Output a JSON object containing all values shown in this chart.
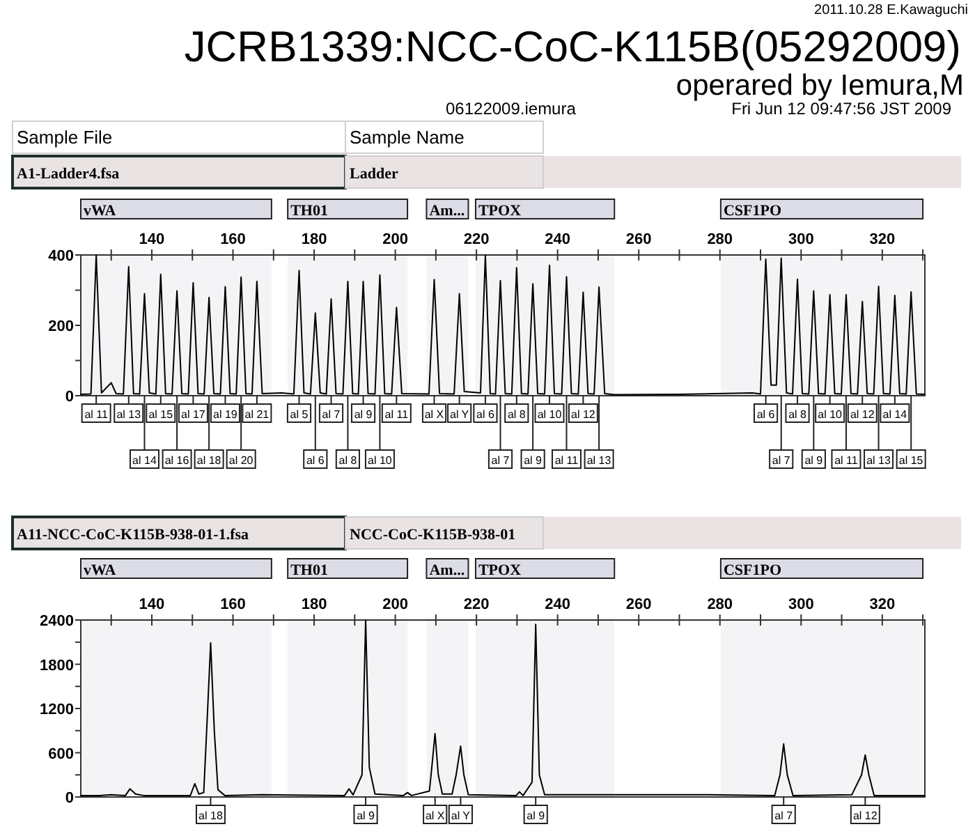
{
  "chart_data": [
    {
      "type": "line",
      "title": "JCRB1339:NCC-CoC-K115B(05292009)",
      "subtitle": "operared by Iemura,M",
      "annotations": [
        "2011.10.28 E.Kawaguchi",
        "06122009.iemura",
        "Fri Jun 12 09:47:56 JST 2009",
        "Sample File",
        "Sample Name",
        "A1-Ladder4.fsa",
        "Ladder",
        {
          "text": "al 11",
          "x": 126.3,
          "y": 0
        },
        {
          "text": "al 13",
          "x": 134.3,
          "y": 0
        },
        {
          "text": "al 14",
          "x": 138.2,
          "y": 0
        },
        {
          "text": "al 15",
          "x": 142.2,
          "y": 0
        },
        {
          "text": "al 16",
          "x": 146.2,
          "y": 0
        },
        {
          "text": "al 17",
          "x": 150.2,
          "y": 0
        },
        {
          "text": "al 18",
          "x": 154.1,
          "y": 0
        },
        {
          "text": "al 19",
          "x": 158.1,
          "y": 0
        },
        {
          "text": "al 20",
          "x": 162,
          "y": 0
        },
        {
          "text": "al 21",
          "x": 165.9,
          "y": 0
        },
        {
          "text": "al 5",
          "x": 176.3,
          "y": 0
        },
        {
          "text": "al 6",
          "x": 180.3,
          "y": 0
        },
        {
          "text": "al 7",
          "x": 184.2,
          "y": 0
        },
        {
          "text": "al 8",
          "x": 188.3,
          "y": 0
        },
        {
          "text": "al 9",
          "x": 192.1,
          "y": 0
        },
        {
          "text": "al 10",
          "x": 196.2,
          "y": 0
        },
        {
          "text": "al 11",
          "x": 200.3,
          "y": 0
        },
        {
          "text": "al X",
          "x": 209.6,
          "y": 0
        },
        {
          "text": "al Y",
          "x": 215.8,
          "y": 0
        },
        {
          "text": "al 6",
          "x": 222.2,
          "y": 0
        },
        {
          "text": "al 7",
          "x": 225.9,
          "y": 0
        },
        {
          "text": "al 8",
          "x": 229.9,
          "y": 0
        },
        {
          "text": "al 9",
          "x": 233.9,
          "y": 0
        },
        {
          "text": "al 10",
          "x": 238,
          "y": 0
        },
        {
          "text": "al 11",
          "x": 242.2,
          "y": 0
        },
        {
          "text": "al 12",
          "x": 246.3,
          "y": 0
        },
        {
          "text": "al 13",
          "x": 250.2,
          "y": 0
        },
        {
          "text": "al 6",
          "x": 291.3,
          "y": 0
        },
        {
          "text": "al 7",
          "x": 295.1,
          "y": 0
        },
        {
          "text": "al 8",
          "x": 299.1,
          "y": 0
        },
        {
          "text": "al 9",
          "x": 303.1,
          "y": 0
        },
        {
          "text": "al 10",
          "x": 307.1,
          "y": 0
        },
        {
          "text": "al 11",
          "x": 311.1,
          "y": 0
        },
        {
          "text": "al 12",
          "x": 315.1,
          "y": 0
        },
        {
          "text": "al 13",
          "x": 319.1,
          "y": 0
        },
        {
          "text": "al 14",
          "x": 323.1,
          "y": 0
        },
        {
          "text": "al 15",
          "x": 327.1,
          "y": 0
        }
      ],
      "bands": [
        {
          "axis": "x",
          "from": 122.5,
          "to": 169.5,
          "label": "vWA",
          "color": "#dcdce6"
        },
        {
          "axis": "x",
          "from": 173.5,
          "to": 203,
          "label": "TH01",
          "color": "#dcdce6"
        },
        {
          "axis": "x",
          "from": 207.7,
          "to": 218,
          "label": "Am...",
          "color": "#dcdce6"
        },
        {
          "axis": "x",
          "from": 219.8,
          "to": 254,
          "label": "TPOX",
          "color": "#dcdce6"
        },
        {
          "axis": "x",
          "from": 280.2,
          "to": 330,
          "label": "CSF1PO",
          "color": "#dcdce6"
        }
      ],
      "xlim": [
        122.5,
        330.5
      ],
      "xticks": [
        {
          "value": 130,
          "label": null
        },
        140,
        {
          "value": 150,
          "label": null
        },
        160,
        {
          "value": 170,
          "label": null
        },
        180,
        {
          "value": 190,
          "label": null
        },
        200,
        {
          "value": 210,
          "label": null
        },
        220,
        {
          "value": 230,
          "label": null
        },
        240,
        {
          "value": 250,
          "label": null
        },
        260,
        {
          "value": 270,
          "label": null
        },
        280,
        {
          "value": 290,
          "label": null
        },
        300,
        {
          "value": 310,
          "label": null
        },
        320,
        {
          "value": 330,
          "label": null
        }
      ],
      "ylim": [
        0,
        400
      ],
      "yticks": [
        0,
        {
          "value": 100,
          "label": null
        },
        200,
        {
          "value": 300,
          "label": null
        },
        400
      ],
      "series": [
        {
          "color": "#000000",
          "x": [
            122.5,
            125,
            126.3,
            127.6,
            130,
            131.2,
            133,
            134.3,
            135.5,
            137,
            138.2,
            139.4,
            141,
            142.2,
            143.4,
            145,
            146.2,
            147.4,
            149,
            150.2,
            151.4,
            152.9,
            154.1,
            155.3,
            156.9,
            158.1,
            159.3,
            160.8,
            162,
            163.2,
            164.7,
            165.9,
            167.2,
            172,
            175,
            176.3,
            177.5,
            179.1,
            180.3,
            181.5,
            183,
            184.2,
            185.4,
            187.1,
            188.3,
            189.5,
            190.9,
            192.1,
            193.3,
            195,
            196.2,
            197.4,
            199.1,
            200.3,
            201.6,
            208.3,
            209.6,
            210.9,
            214.5,
            215.8,
            217,
            221,
            222.2,
            223.4,
            224.7,
            225.9,
            227.1,
            228.7,
            229.9,
            231.1,
            232.7,
            233.9,
            235.1,
            236.8,
            238,
            239.2,
            241,
            242.2,
            243.4,
            245.1,
            246.3,
            247.5,
            249,
            250.2,
            251.6,
            254,
            270,
            288,
            290,
            291.3,
            292.6,
            293.9,
            295.1,
            296.4,
            297.9,
            299.1,
            300.3,
            301.9,
            303.1,
            304.3,
            305.9,
            307.1,
            308.3,
            309.9,
            311.1,
            312.3,
            313.9,
            315.1,
            316.3,
            317.9,
            319.1,
            320.3,
            321.9,
            323.1,
            324.3,
            325.9,
            327.1,
            328.4,
            330.5
          ],
          "values": [
            4,
            5,
            400,
            8,
            37,
            6,
            5,
            367,
            6,
            5,
            290,
            8,
            5,
            345,
            6,
            5,
            298,
            6,
            5,
            321,
            6,
            5,
            279,
            6,
            5,
            310,
            6,
            5,
            337,
            6,
            5,
            325,
            6,
            8,
            5,
            356,
            8,
            5,
            235,
            8,
            5,
            275,
            6,
            5,
            325,
            6,
            5,
            325,
            6,
            5,
            343,
            6,
            5,
            251,
            6,
            5,
            330,
            6,
            5,
            290,
            12,
            8,
            400,
            6,
            5,
            327,
            6,
            5,
            364,
            6,
            5,
            318,
            6,
            5,
            371,
            6,
            5,
            338,
            6,
            5,
            294,
            6,
            5,
            309,
            6,
            3,
            4,
            8,
            5,
            388,
            30,
            30,
            391,
            8,
            5,
            331,
            6,
            5,
            298,
            6,
            5,
            287,
            6,
            5,
            287,
            6,
            5,
            268,
            6,
            5,
            311,
            6,
            5,
            285,
            6,
            5,
            295,
            5,
            4
          ]
        }
      ]
    },
    {
      "type": "line",
      "annotations": [
        "A11-NCC-CoC-K115B-938-01-1.fsa",
        "NCC-CoC-K115B-938-01",
        {
          "text": "al 18",
          "x": 154.5,
          "y": 0
        },
        {
          "text": "al 9",
          "x": 192.7,
          "y": 0
        },
        {
          "text": "al X",
          "x": 209.8,
          "y": 0
        },
        {
          "text": "al Y",
          "x": 216.1,
          "y": 0
        },
        {
          "text": "al 9",
          "x": 234.6,
          "y": 0
        },
        {
          "text": "al 7",
          "x": 295.7,
          "y": 0
        },
        {
          "text": "al 12",
          "x": 315.8,
          "y": 0
        }
      ],
      "bands": [
        {
          "axis": "x",
          "from": 122.5,
          "to": 169.5,
          "label": "vWA",
          "color": "#dcdce6"
        },
        {
          "axis": "x",
          "from": 173.5,
          "to": 203,
          "label": "TH01",
          "color": "#dcdce6"
        },
        {
          "axis": "x",
          "from": 207.7,
          "to": 218,
          "label": "Am...",
          "color": "#dcdce6"
        },
        {
          "axis": "x",
          "from": 219.8,
          "to": 254,
          "label": "TPOX",
          "color": "#dcdce6"
        },
        {
          "axis": "x",
          "from": 280.2,
          "to": 330,
          "label": "CSF1PO",
          "color": "#dcdce6"
        }
      ],
      "xlim": [
        122.5,
        330.5
      ],
      "xticks": [
        {
          "value": 130,
          "label": null
        },
        140,
        {
          "value": 150,
          "label": null
        },
        160,
        {
          "value": 170,
          "label": null
        },
        180,
        {
          "value": 190,
          "label": null
        },
        200,
        {
          "value": 210,
          "label": null
        },
        220,
        {
          "value": 230,
          "label": null
        },
        240,
        {
          "value": 250,
          "label": null
        },
        260,
        {
          "value": 270,
          "label": null
        },
        280,
        {
          "value": 290,
          "label": null
        },
        300,
        {
          "value": 310,
          "label": null
        },
        320,
        {
          "value": 330,
          "label": null
        }
      ],
      "ylim": [
        0,
        2400
      ],
      "yticks": [
        0,
        {
          "value": 300,
          "label": null
        },
        600,
        {
          "value": 900,
          "label": null
        },
        1200,
        {
          "value": 1500,
          "label": null
        },
        1800,
        {
          "value": 2100,
          "label": null
        },
        2400
      ],
      "series": [
        {
          "color": "#000000",
          "x": [
            122.5,
            127,
            130,
            133.5,
            134.6,
            136,
            138,
            149.5,
            150.6,
            151.6,
            152.8,
            153.6,
            154.5,
            155.4,
            156.3,
            158,
            167,
            187.5,
            188.6,
            189.6,
            191.8,
            192.7,
            193.6,
            195,
            202,
            203,
            204,
            208.4,
            209,
            209.8,
            210.6,
            211.6,
            214,
            215,
            216.1,
            216.9,
            218,
            229.8,
            230.6,
            231.5,
            233.7,
            234.6,
            235.5,
            236.8,
            277,
            293.5,
            294.8,
            295.7,
            296.6,
            298,
            312.5,
            314.9,
            315.8,
            316.7,
            318,
            330.5
          ],
          "values": [
            20,
            20,
            30,
            20,
            110,
            40,
            20,
            20,
            180,
            40,
            60,
            1000,
            2090,
            900,
            100,
            20,
            30,
            20,
            110,
            30,
            300,
            2400,
            400,
            40,
            20,
            60,
            20,
            80,
            400,
            860,
            300,
            40,
            40,
            300,
            690,
            300,
            30,
            20,
            70,
            20,
            200,
            2340,
            300,
            30,
            30,
            20,
            300,
            720,
            300,
            20,
            30,
            300,
            570,
            300,
            20,
            20
          ]
        }
      ]
    }
  ]
}
